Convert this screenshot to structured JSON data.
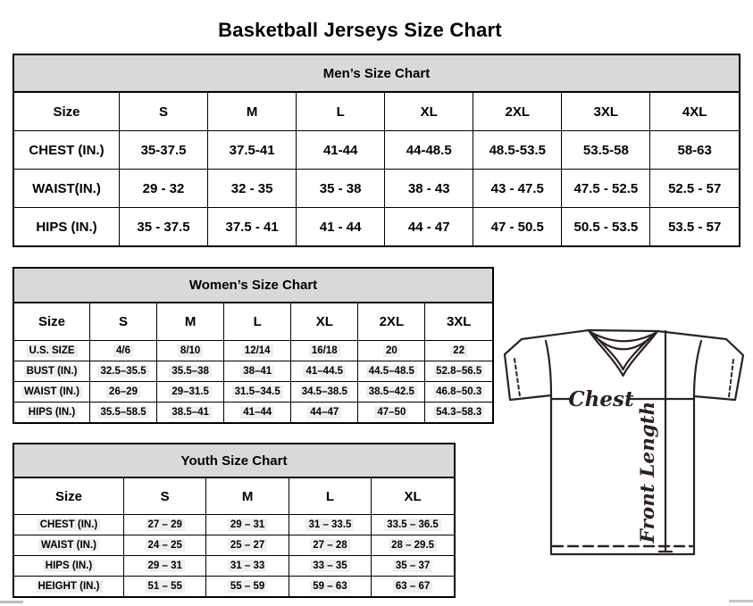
{
  "page": {
    "title": "Basketball Jerseys Size Chart"
  },
  "tables": [
    {
      "id": "mens",
      "title": "Men’s Size Chart",
      "columns": [
        "Size",
        "S",
        "M",
        "L",
        "XL",
        "2XL",
        "3XL",
        "4XL"
      ],
      "rows": [
        {
          "label": "CHEST (IN.)",
          "values": [
            "35-37.5",
            "37.5-41",
            "41-44",
            "44-48.5",
            "48.5-53.5",
            "53.5-58",
            "58-63"
          ]
        },
        {
          "label": "WAIST(IN.)",
          "values": [
            "29 - 32",
            "32 - 35",
            "35 - 38",
            "38 - 43",
            "43 - 47.5",
            "47.5 - 52.5",
            "52.5 - 57"
          ]
        },
        {
          "label": "HIPS (IN.)",
          "values": [
            "35 - 37.5",
            "37.5 - 41",
            "41 - 44",
            "44 - 47",
            "47 - 50.5",
            "50.5 - 53.5",
            "53.5 - 57"
          ]
        }
      ]
    },
    {
      "id": "womens",
      "title": "Women’s Size Chart",
      "columns": [
        "Size",
        "S",
        "M",
        "L",
        "XL",
        "2XL",
        "3XL"
      ],
      "rows": [
        {
          "label": "U.S. SIZE",
          "values": [
            "4/6",
            "8/10",
            "12/14",
            "16/18",
            "20",
            "22"
          ]
        },
        {
          "label": "BUST (IN.)",
          "values": [
            "32.5–35.5",
            "35.5–38",
            "38–41",
            "41–44.5",
            "44.5–48.5",
            "52.8–56.5"
          ]
        },
        {
          "label": "WAIST (IN.)",
          "values": [
            "26–29",
            "29–31.5",
            "31.5–34.5",
            "34.5–38.5",
            "38.5–42.5",
            "46.8–50.3"
          ]
        },
        {
          "label": "HIPS (IN.)",
          "values": [
            "35.5–58.5",
            "38.5–41",
            "41–44",
            "44–47",
            "47–50",
            "54.3–58.3"
          ]
        }
      ]
    },
    {
      "id": "youth",
      "title": "Youth Size Chart",
      "columns": [
        "Size",
        "S",
        "M",
        "L",
        "XL"
      ],
      "rows": [
        {
          "label": "CHEST (IN.)",
          "values": [
            "27 – 29",
            "29 – 31",
            "31 – 33.5",
            "33.5 – 36.5"
          ]
        },
        {
          "label": "WAIST (IN.)",
          "values": [
            "24 – 25",
            "25 – 27",
            "27 – 28",
            "28 – 29.5"
          ]
        },
        {
          "label": "HIPS (IN.)",
          "values": [
            "29 – 31",
            "31 – 33",
            "33 – 35",
            "35 – 37"
          ]
        },
        {
          "label": "HEIGHT (IN.)",
          "values": [
            "51 – 55",
            "55 – 59",
            "59 – 63",
            "63 – 67"
          ]
        }
      ]
    }
  ],
  "diagram": {
    "chest_label": "Chest",
    "front_length_label": "Front Length"
  },
  "colors": {
    "table_header_bg": "#d9d9d9",
    "border": "#000000",
    "diagram_stroke": "#2b2125"
  }
}
